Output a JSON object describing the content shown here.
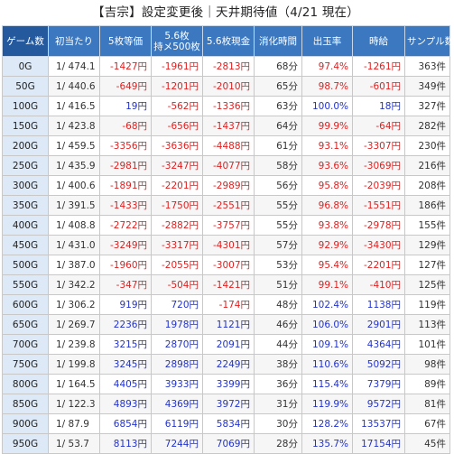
{
  "title": "【吉宗】設定変更後｜天井期待値（4/21 現在）",
  "headers": [
    "ゲーム数",
    "初当たり",
    "5枚等価",
    "5.6枚\n持メ500枚",
    "5.6枚現金",
    "消化時間",
    "出玉率",
    "時給",
    "サンプル数"
  ],
  "colors": {
    "header_bg": "#3b78c0",
    "first_header_bg": "#24599e",
    "game_col_bg": "#dde9f7",
    "negative": "#e02020",
    "positive": "#2233cc"
  },
  "rows": [
    {
      "g": "0G",
      "hit": "1/ 474.1",
      "v5": "-1427円",
      "v56m": "-1961円",
      "v56c": "-2813円",
      "time": "68分",
      "rate": "97.4%",
      "hourly": "-1261円",
      "n": "363件"
    },
    {
      "g": "50G",
      "hit": "1/ 440.6",
      "v5": "-649円",
      "v56m": "-1201円",
      "v56c": "-2010円",
      "time": "65分",
      "rate": "98.7%",
      "hourly": "-601円",
      "n": "349件"
    },
    {
      "g": "100G",
      "hit": "1/ 416.5",
      "v5": "19円",
      "v56m": "-562円",
      "v56c": "-1336円",
      "time": "63分",
      "rate": "100.0%",
      "hourly": "18円",
      "n": "327件"
    },
    {
      "g": "150G",
      "hit": "1/ 423.8",
      "v5": "-68円",
      "v56m": "-656円",
      "v56c": "-1437円",
      "time": "64分",
      "rate": "99.9%",
      "hourly": "-64円",
      "n": "282件"
    },
    {
      "g": "200G",
      "hit": "1/ 459.5",
      "v5": "-3356円",
      "v56m": "-3636円",
      "v56c": "-4488円",
      "time": "61分",
      "rate": "93.1%",
      "hourly": "-3307円",
      "n": "230件"
    },
    {
      "g": "250G",
      "hit": "1/ 435.9",
      "v5": "-2981円",
      "v56m": "-3247円",
      "v56c": "-4077円",
      "time": "58分",
      "rate": "93.6%",
      "hourly": "-3069円",
      "n": "216件"
    },
    {
      "g": "300G",
      "hit": "1/ 400.6",
      "v5": "-1891円",
      "v56m": "-2201円",
      "v56c": "-2989円",
      "time": "56分",
      "rate": "95.8%",
      "hourly": "-2039円",
      "n": "208件"
    },
    {
      "g": "350G",
      "hit": "1/ 391.5",
      "v5": "-1433円",
      "v56m": "-1750円",
      "v56c": "-2551円",
      "time": "55分",
      "rate": "96.8%",
      "hourly": "-1551円",
      "n": "186件"
    },
    {
      "g": "400G",
      "hit": "1/ 408.8",
      "v5": "-2722円",
      "v56m": "-2882円",
      "v56c": "-3757円",
      "time": "55分",
      "rate": "93.8%",
      "hourly": "-2978円",
      "n": "155件"
    },
    {
      "g": "450G",
      "hit": "1/ 431.0",
      "v5": "-3249円",
      "v56m": "-3317円",
      "v56c": "-4301円",
      "time": "57分",
      "rate": "92.9%",
      "hourly": "-3430円",
      "n": "129件"
    },
    {
      "g": "500G",
      "hit": "1/ 387.0",
      "v5": "-1960円",
      "v56m": "-2055円",
      "v56c": "-3007円",
      "time": "53分",
      "rate": "95.4%",
      "hourly": "-2201円",
      "n": "127件"
    },
    {
      "g": "550G",
      "hit": "1/ 342.2",
      "v5": "-347円",
      "v56m": "-504円",
      "v56c": "-1421円",
      "time": "51分",
      "rate": "99.1%",
      "hourly": "-410円",
      "n": "125件"
    },
    {
      "g": "600G",
      "hit": "1/ 306.2",
      "v5": "919円",
      "v56m": "720円",
      "v56c": "-174円",
      "time": "48分",
      "rate": "102.4%",
      "hourly": "1138円",
      "n": "119件"
    },
    {
      "g": "650G",
      "hit": "1/ 269.7",
      "v5": "2236円",
      "v56m": "1978円",
      "v56c": "1121円",
      "time": "46分",
      "rate": "106.0%",
      "hourly": "2901円",
      "n": "113件"
    },
    {
      "g": "700G",
      "hit": "1/ 239.8",
      "v5": "3215円",
      "v56m": "2870円",
      "v56c": "2091円",
      "time": "44分",
      "rate": "109.1%",
      "hourly": "4364円",
      "n": "101件"
    },
    {
      "g": "750G",
      "hit": "1/ 199.8",
      "v5": "3245円",
      "v56m": "2898円",
      "v56c": "2249円",
      "time": "38分",
      "rate": "110.6%",
      "hourly": "5092円",
      "n": "98件"
    },
    {
      "g": "800G",
      "hit": "1/ 164.5",
      "v5": "4405円",
      "v56m": "3933円",
      "v56c": "3399円",
      "time": "36分",
      "rate": "115.4%",
      "hourly": "7379円",
      "n": "89件"
    },
    {
      "g": "850G",
      "hit": "1/ 122.3",
      "v5": "4893円",
      "v56m": "4369円",
      "v56c": "3972円",
      "time": "31分",
      "rate": "119.9%",
      "hourly": "9572円",
      "n": "81件"
    },
    {
      "g": "900G",
      "hit": "1/ 87.9",
      "v5": "6854円",
      "v56m": "6119円",
      "v56c": "5834円",
      "time": "30分",
      "rate": "128.2%",
      "hourly": "13537円",
      "n": "67件"
    },
    {
      "g": "950G",
      "hit": "1/ 53.7",
      "v5": "8113円",
      "v56m": "7244円",
      "v56c": "7069円",
      "time": "28分",
      "rate": "135.7%",
      "hourly": "17154円",
      "n": "45件"
    }
  ]
}
